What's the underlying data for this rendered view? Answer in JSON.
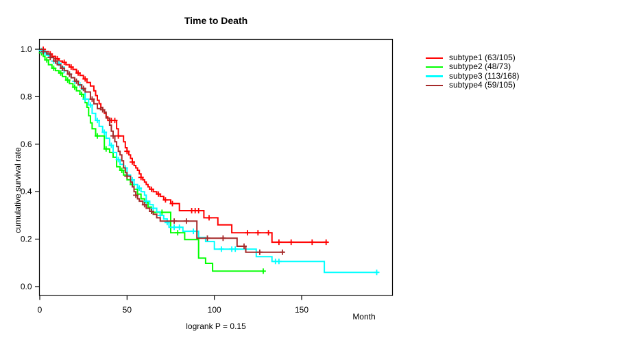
{
  "chart_data": {
    "type": "line",
    "variant": "kaplan-meier-step",
    "title": "Time to Death",
    "xlabel": "Month",
    "ylabel": "cumulative survival rate",
    "annotation": "logrank P = 0.15",
    "x_ticks": [
      0,
      50,
      100,
      150
    ],
    "y_ticks": [
      0.0,
      0.2,
      0.4,
      0.6,
      0.8,
      1.0
    ],
    "xlim": [
      0,
      202
    ],
    "ylim": [
      0.0,
      1.0
    ],
    "grid": false,
    "legend_position": "right-outside",
    "axis_color": "#000000",
    "background_color": "#ffffff",
    "series": [
      {
        "name": "subtype1 (63/105)",
        "color": "#ff0000",
        "steps": [
          [
            0,
            1.0
          ],
          [
            3,
            0.99
          ],
          [
            5,
            0.98
          ],
          [
            7,
            0.97
          ],
          [
            9,
            0.96
          ],
          [
            11,
            0.95
          ],
          [
            13,
            0.945
          ],
          [
            15,
            0.935
          ],
          [
            17,
            0.925
          ],
          [
            19,
            0.915
          ],
          [
            21,
            0.9
          ],
          [
            23,
            0.89
          ],
          [
            25,
            0.875
          ],
          [
            27,
            0.86
          ],
          [
            29,
            0.845
          ],
          [
            31,
            0.825
          ],
          [
            32,
            0.805
          ],
          [
            33,
            0.785
          ],
          [
            34,
            0.77
          ],
          [
            35,
            0.755
          ],
          [
            36,
            0.745
          ],
          [
            37,
            0.73
          ],
          [
            38,
            0.715
          ],
          [
            39,
            0.7
          ],
          [
            44,
            0.665
          ],
          [
            45,
            0.635
          ],
          [
            48,
            0.61
          ],
          [
            49,
            0.585
          ],
          [
            50,
            0.57
          ],
          [
            51,
            0.555
          ],
          [
            52,
            0.54
          ],
          [
            53,
            0.525
          ],
          [
            54,
            0.51
          ],
          [
            55,
            0.5
          ],
          [
            56,
            0.49
          ],
          [
            57,
            0.475
          ],
          [
            58,
            0.46
          ],
          [
            59,
            0.45
          ],
          [
            60,
            0.44
          ],
          [
            61,
            0.43
          ],
          [
            62,
            0.42
          ],
          [
            63,
            0.41
          ],
          [
            65,
            0.4
          ],
          [
            67,
            0.39
          ],
          [
            69,
            0.38
          ],
          [
            71,
            0.365
          ],
          [
            75,
            0.35
          ],
          [
            80,
            0.32
          ],
          [
            94,
            0.29
          ],
          [
            102,
            0.26
          ],
          [
            110,
            0.227
          ],
          [
            133,
            0.187
          ],
          [
            165,
            0.187
          ]
        ],
        "censor_times": [
          2,
          6,
          10,
          14,
          18,
          22,
          26,
          41,
          43,
          45,
          50,
          53,
          58,
          64,
          68,
          72,
          76,
          87,
          89,
          91,
          97,
          119,
          125,
          131,
          137,
          144,
          156,
          164
        ]
      },
      {
        "name": "subtype2 (48/73)",
        "color": "#00ff00",
        "steps": [
          [
            0,
            1.0
          ],
          [
            1,
            0.985
          ],
          [
            2,
            0.97
          ],
          [
            3,
            0.955
          ],
          [
            5,
            0.935
          ],
          [
            7,
            0.92
          ],
          [
            9,
            0.91
          ],
          [
            11,
            0.9
          ],
          [
            13,
            0.885
          ],
          [
            15,
            0.87
          ],
          [
            17,
            0.855
          ],
          [
            19,
            0.84
          ],
          [
            21,
            0.825
          ],
          [
            23,
            0.81
          ],
          [
            25,
            0.79
          ],
          [
            26,
            0.775
          ],
          [
            27,
            0.755
          ],
          [
            28,
            0.72
          ],
          [
            29,
            0.69
          ],
          [
            30,
            0.665
          ],
          [
            32,
            0.635
          ],
          [
            37,
            0.58
          ],
          [
            40,
            0.565
          ],
          [
            42,
            0.545
          ],
          [
            44,
            0.505
          ],
          [
            46,
            0.49
          ],
          [
            48,
            0.47
          ],
          [
            50,
            0.45
          ],
          [
            52,
            0.43
          ],
          [
            54,
            0.41
          ],
          [
            56,
            0.39
          ],
          [
            58,
            0.37
          ],
          [
            60,
            0.355
          ],
          [
            62,
            0.335
          ],
          [
            64,
            0.313
          ],
          [
            75,
            0.227
          ],
          [
            83,
            0.198
          ],
          [
            91,
            0.12
          ],
          [
            95,
            0.098
          ],
          [
            99,
            0.065
          ],
          [
            129,
            0.065
          ]
        ],
        "censor_times": [
          1,
          4,
          8,
          12,
          16,
          20,
          24,
          33,
          38,
          47,
          53,
          70,
          79,
          128
        ]
      },
      {
        "name": "subtype3 (113/168)",
        "color": "#00ffff",
        "steps": [
          [
            0,
            1.0
          ],
          [
            1,
            0.995
          ],
          [
            2,
            0.985
          ],
          [
            4,
            0.975
          ],
          [
            6,
            0.965
          ],
          [
            8,
            0.95
          ],
          [
            10,
            0.94
          ],
          [
            12,
            0.925
          ],
          [
            14,
            0.91
          ],
          [
            16,
            0.895
          ],
          [
            18,
            0.88
          ],
          [
            20,
            0.865
          ],
          [
            22,
            0.85
          ],
          [
            24,
            0.83
          ],
          [
            26,
            0.79
          ],
          [
            28,
            0.765
          ],
          [
            30,
            0.73
          ],
          [
            32,
            0.7
          ],
          [
            34,
            0.675
          ],
          [
            36,
            0.65
          ],
          [
            38,
            0.625
          ],
          [
            40,
            0.595
          ],
          [
            42,
            0.565
          ],
          [
            44,
            0.535
          ],
          [
            46,
            0.515
          ],
          [
            48,
            0.5
          ],
          [
            50,
            0.47
          ],
          [
            52,
            0.45
          ],
          [
            54,
            0.43
          ],
          [
            56,
            0.415
          ],
          [
            58,
            0.4
          ],
          [
            60,
            0.385
          ],
          [
            61,
            0.36
          ],
          [
            63,
            0.345
          ],
          [
            65,
            0.33
          ],
          [
            67,
            0.315
          ],
          [
            69,
            0.3
          ],
          [
            71,
            0.285
          ],
          [
            73,
            0.27
          ],
          [
            74,
            0.25
          ],
          [
            82,
            0.233
          ],
          [
            91,
            0.207
          ],
          [
            95,
            0.19
          ],
          [
            100,
            0.158
          ],
          [
            124,
            0.126
          ],
          [
            133,
            0.106
          ],
          [
            163,
            0.06
          ],
          [
            194,
            0.06
          ]
        ],
        "censor_times": [
          1,
          3,
          5,
          8,
          11,
          14,
          17,
          20,
          23,
          26,
          29,
          33,
          37,
          41,
          45,
          49,
          53,
          57,
          61,
          65,
          69,
          73,
          77,
          80,
          88,
          104,
          110,
          112,
          135,
          137,
          193
        ]
      },
      {
        "name": "subtype4 (59/105)",
        "color": "#a52a2a",
        "steps": [
          [
            0,
            1.0
          ],
          [
            2,
            0.99
          ],
          [
            4,
            0.98
          ],
          [
            6,
            0.965
          ],
          [
            8,
            0.95
          ],
          [
            10,
            0.935
          ],
          [
            12,
            0.92
          ],
          [
            14,
            0.91
          ],
          [
            16,
            0.895
          ],
          [
            18,
            0.88
          ],
          [
            20,
            0.865
          ],
          [
            22,
            0.85
          ],
          [
            24,
            0.835
          ],
          [
            26,
            0.82
          ],
          [
            29,
            0.79
          ],
          [
            31,
            0.77
          ],
          [
            33,
            0.75
          ],
          [
            35,
            0.755
          ],
          [
            36,
            0.745
          ],
          [
            37,
            0.735
          ],
          [
            38,
            0.71
          ],
          [
            40,
            0.68
          ],
          [
            41,
            0.655
          ],
          [
            42,
            0.635
          ],
          [
            43,
            0.61
          ],
          [
            44,
            0.59
          ],
          [
            45,
            0.57
          ],
          [
            46,
            0.555
          ],
          [
            47,
            0.53
          ],
          [
            48,
            0.5
          ],
          [
            49,
            0.48
          ],
          [
            50,
            0.465
          ],
          [
            52,
            0.44
          ],
          [
            53,
            0.42
          ],
          [
            54,
            0.4
          ],
          [
            55,
            0.385
          ],
          [
            56,
            0.37
          ],
          [
            57,
            0.36
          ],
          [
            59,
            0.345
          ],
          [
            61,
            0.33
          ],
          [
            63,
            0.317
          ],
          [
            65,
            0.305
          ],
          [
            67,
            0.29
          ],
          [
            69,
            0.276
          ],
          [
            90,
            0.204
          ],
          [
            113,
            0.17
          ],
          [
            118,
            0.145
          ],
          [
            140,
            0.145
          ]
        ],
        "censor_times": [
          2,
          6,
          9,
          13,
          17,
          21,
          25,
          30,
          36,
          42,
          50,
          55,
          60,
          64,
          77,
          84,
          96,
          105,
          117,
          126,
          139
        ]
      }
    ]
  }
}
